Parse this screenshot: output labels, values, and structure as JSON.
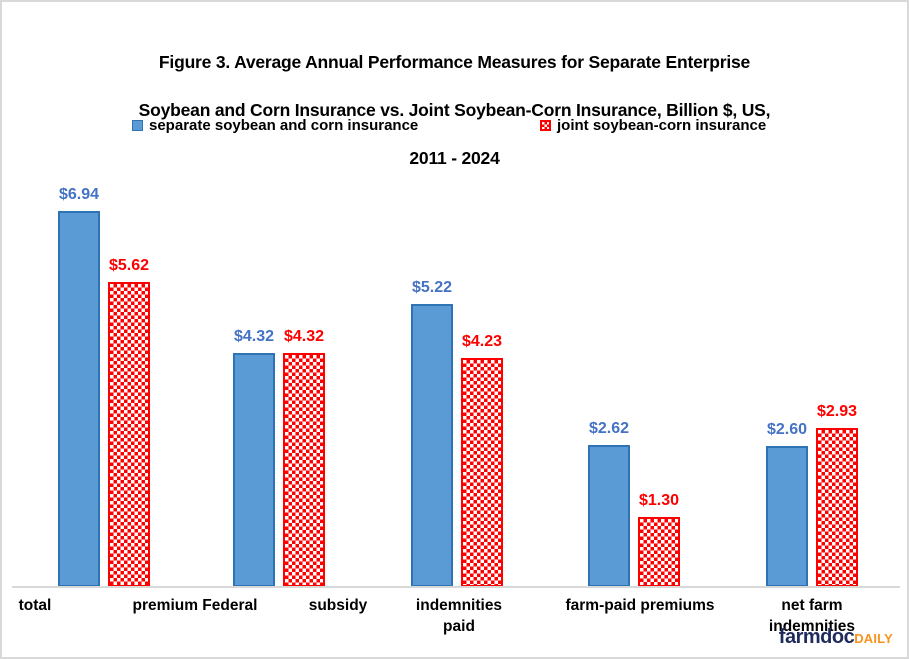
{
  "figure": {
    "title_lines": [
      "Figure 3.  Average Annual Performance Measures for Separate Enterprise",
      "Soybean and Corn Insurance vs. Joint Soybean-Corn Insurance, Billion $, US,",
      "2011 - 2024"
    ]
  },
  "legend": {
    "items": [
      {
        "label": "separate soybean and corn insurance",
        "color": "#5B9BD5",
        "pattern": "solid"
      },
      {
        "label": "joint soybean-corn insurance",
        "color": "#FF0000",
        "pattern": "checker"
      }
    ]
  },
  "chart_data": {
    "type": "bar",
    "title": "Figure 3.  Average Annual Performance Measures for Separate Enterprise Soybean and Corn Insurance vs. Joint Soybean-Corn Insurance, Billion $, US, 2011 - 2024",
    "categories": [
      "total premium",
      "Federal subsidy",
      "indemnities paid",
      "farm-paid premiums",
      "net farm indemnities"
    ],
    "series": [
      {
        "name": "separate soybean and corn insurance",
        "color": "#5B9BD5",
        "border_color": "#2E74B5",
        "fill": "solid",
        "label_color": "#4472C4",
        "values": [
          6.94,
          4.32,
          5.22,
          2.62,
          2.6
        ]
      },
      {
        "name": "joint soybean-corn insurance",
        "color": "#FF0000",
        "border_color": "#FF0000",
        "fill": "checker",
        "label_color": "#FF0000",
        "values": [
          5.62,
          4.32,
          4.23,
          1.3,
          2.93
        ]
      }
    ],
    "value_labels": [
      [
        "$6.94",
        "$4.32",
        "$5.22",
        "$2.62",
        "$2.60"
      ],
      [
        "$5.62",
        "$4.32",
        "$4.23",
        "$1.30",
        "$2.93"
      ]
    ],
    "value_prefix": "$",
    "xlabel": "",
    "ylabel": "",
    "ylim": [
      0,
      8
    ],
    "grid": false,
    "legend_position": "top",
    "x_axis_visible_fragments": [
      "total",
      "premium Federal",
      "subsidy",
      "indemnities\npaid",
      "farm-paid premiums",
      "net farm indemnities"
    ]
  },
  "logo": {
    "farmdoc": "farmdoc",
    "daily": "DAILY"
  }
}
